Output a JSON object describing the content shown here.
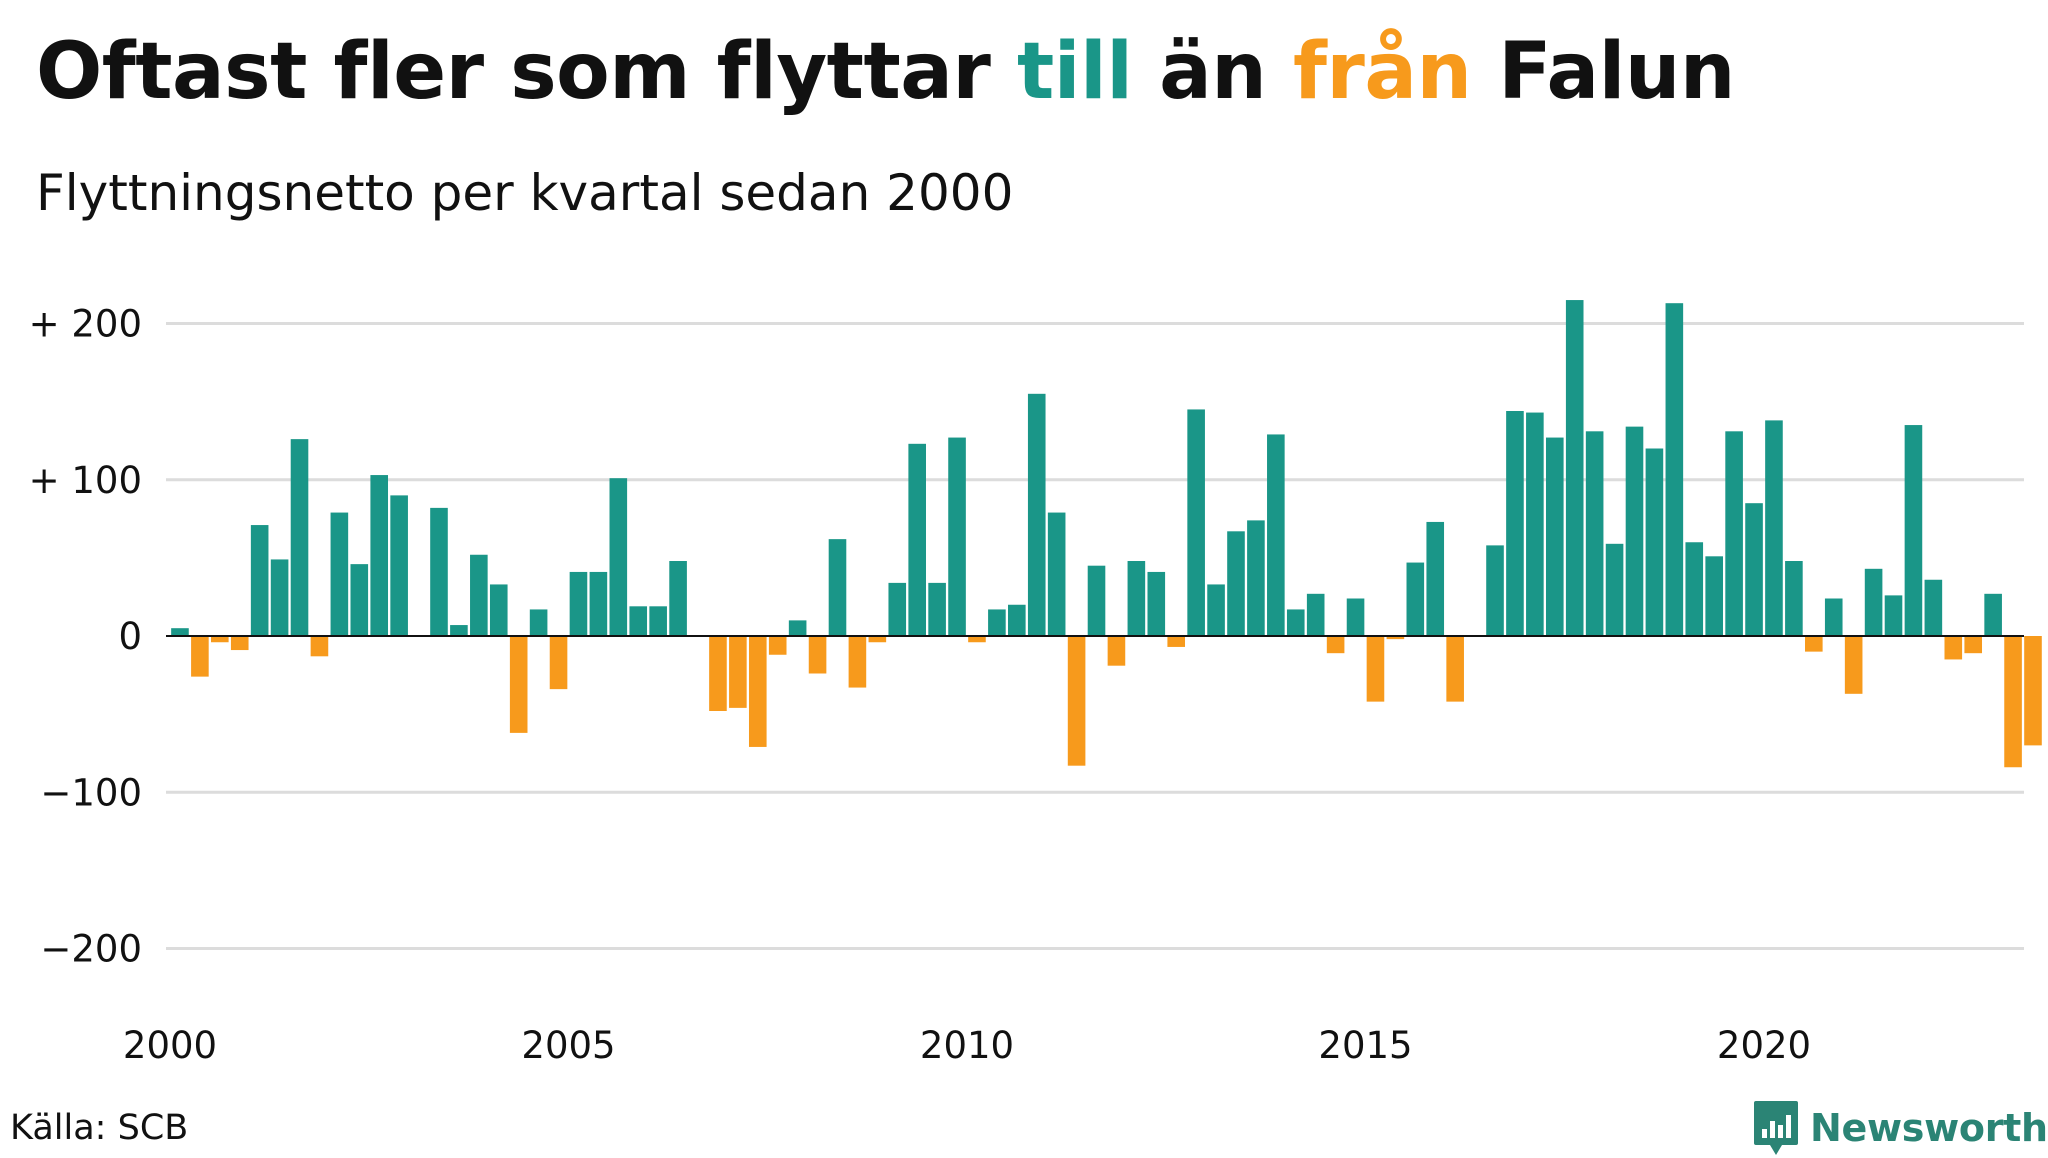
{
  "title": {
    "part1": "Oftast fler som flyttar ",
    "till": "till",
    "part2": " än ",
    "fran": "från",
    "part3": " Falun"
  },
  "subtitle": "Flyttningsnetto per kvartal sedan 2000",
  "source": "Källa: SCB",
  "brand": "Newsworthy",
  "colors": {
    "positive": "#1a9688",
    "negative": "#f79a1c",
    "text": "#111111",
    "grid": "#dcdcdc",
    "brand": "#2b8475"
  },
  "chart_data": {
    "type": "bar",
    "title": "Oftast fler som flyttar till än från Falun",
    "subtitle": "Flyttningsnetto per kvartal sedan 2000",
    "xlabel": "",
    "ylabel": "",
    "ylim": [
      -200,
      220
    ],
    "yticks": [
      {
        "value": 200,
        "label": "+ 200"
      },
      {
        "value": 100,
        "label": "+ 100"
      },
      {
        "value": 0,
        "label": "0"
      },
      {
        "value": -100,
        "label": "−100"
      },
      {
        "value": -200,
        "label": "−200"
      }
    ],
    "xticks": [
      {
        "year": 2000,
        "label": "2000"
      },
      {
        "year": 2005,
        "label": "2005"
      },
      {
        "year": 2010,
        "label": "2010"
      },
      {
        "year": 2015,
        "label": "2015"
      },
      {
        "year": 2020,
        "label": "2020"
      }
    ],
    "grid": true,
    "x_start": "2000 Q1",
    "frequency": "quarterly",
    "values": [
      5,
      -26,
      -4,
      -9,
      71,
      49,
      126,
      -13,
      79,
      46,
      103,
      90,
      0,
      82,
      7,
      52,
      33,
      -62,
      17,
      -34,
      41,
      41,
      101,
      19,
      19,
      48,
      0,
      -48,
      -46,
      -71,
      -12,
      10,
      -24,
      62,
      -33,
      -4,
      34,
      123,
      34,
      127,
      -4,
      17,
      20,
      155,
      79,
      -83,
      45,
      -19,
      48,
      41,
      -7,
      145,
      33,
      67,
      74,
      129,
      17,
      27,
      -11,
      24,
      -42,
      -2,
      47,
      73,
      -42,
      0,
      58,
      144,
      143,
      127,
      215,
      131,
      59,
      134,
      120,
      213,
      60,
      51,
      131,
      85,
      138,
      48,
      -10,
      24,
      -37,
      43,
      26,
      135,
      36,
      -15,
      -11,
      27,
      -84,
      -70
    ]
  }
}
